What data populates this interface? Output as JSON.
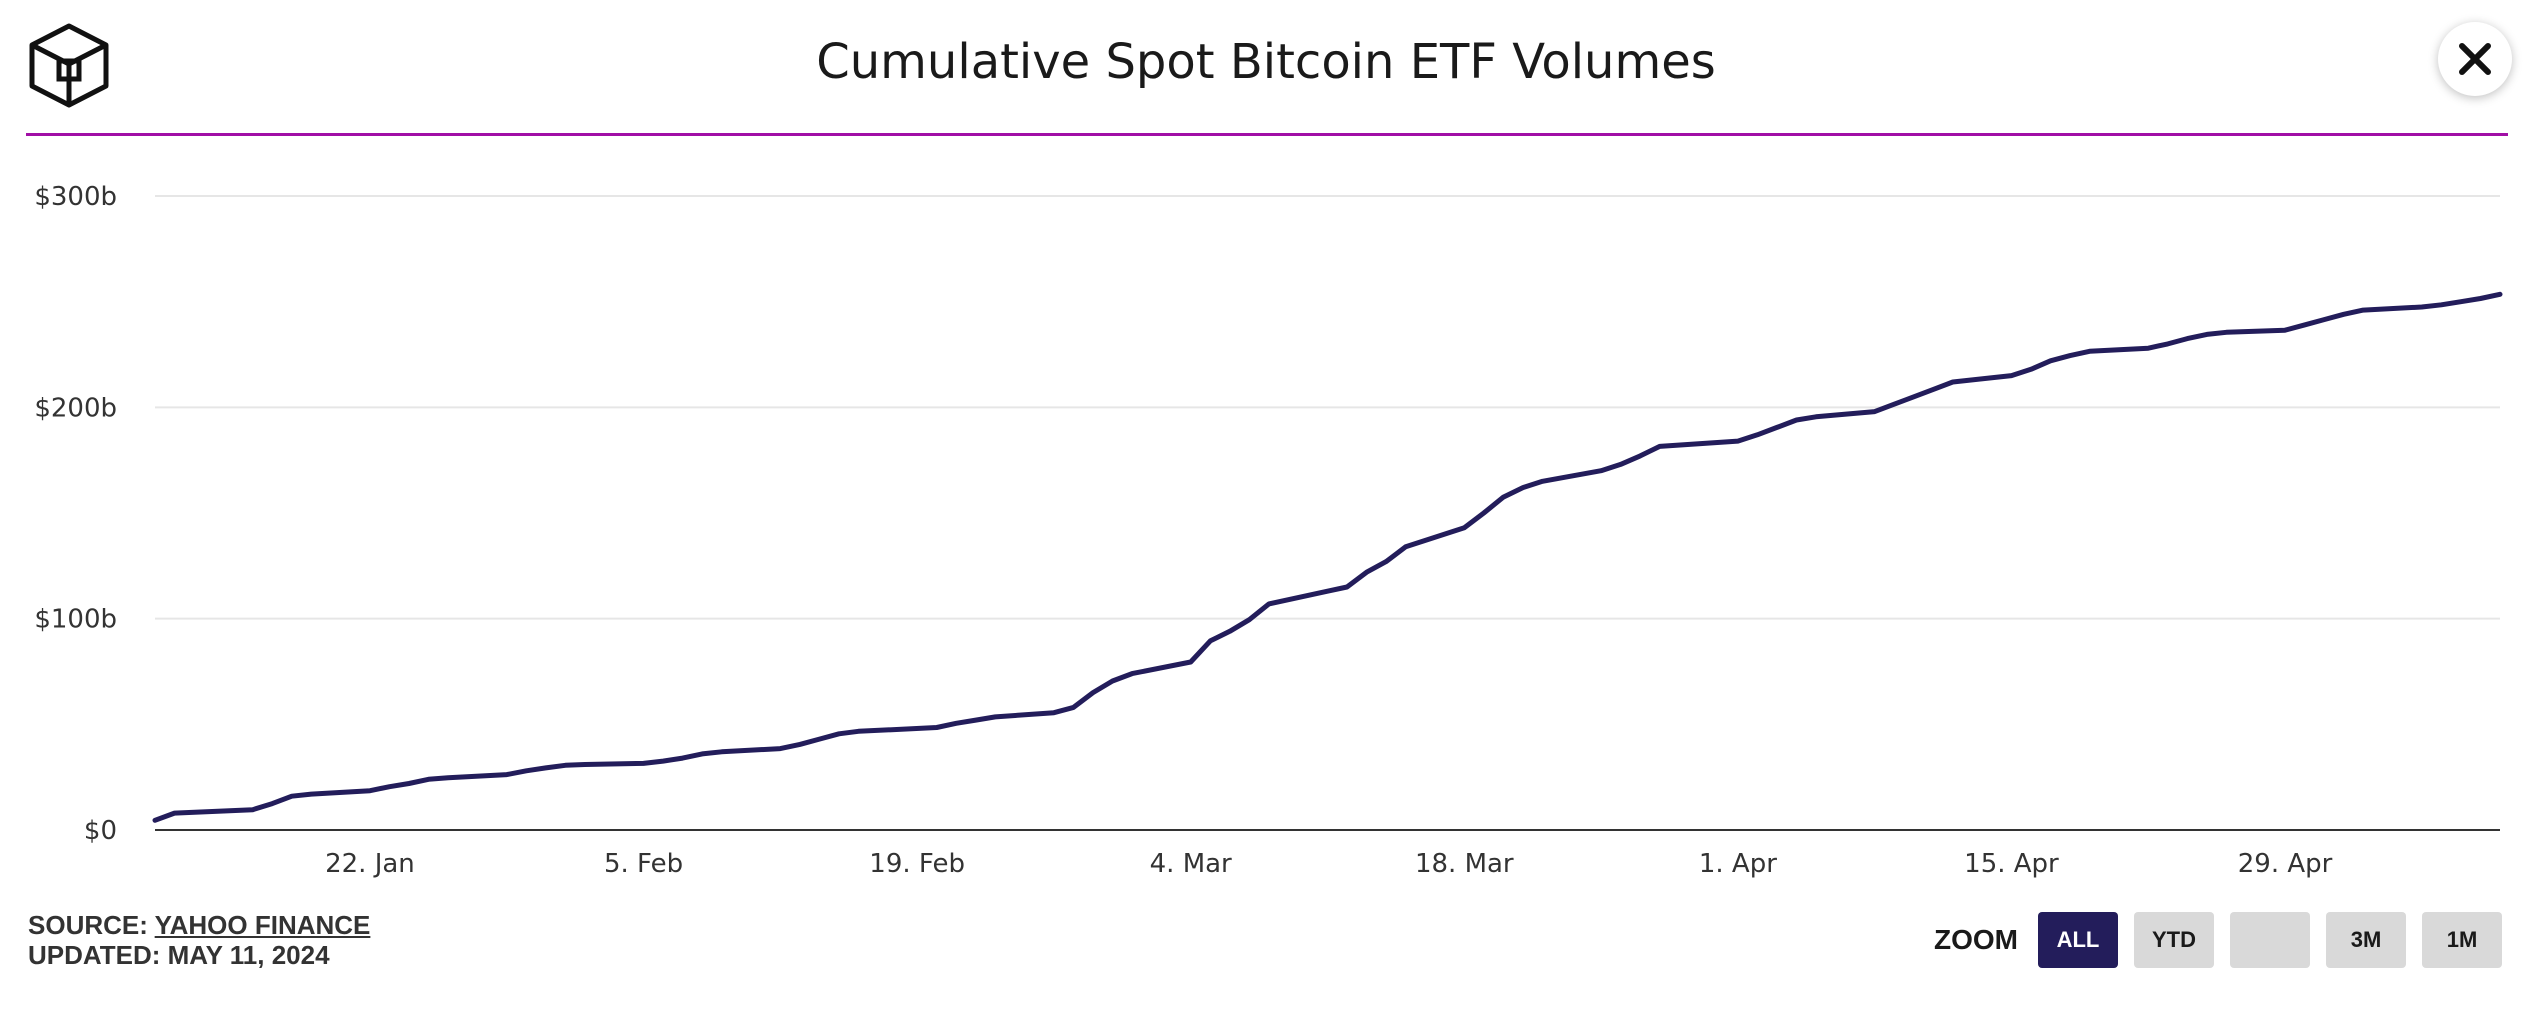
{
  "header": {
    "title": "Cumulative Spot Bitcoin ETF Volumes",
    "close_icon": "close-icon",
    "logo_icon": "cube-logo-icon"
  },
  "colors": {
    "line": "#231d5b",
    "accent": "#a10fa6",
    "grid": "#e6e6e6",
    "zoom_active": "#231d5b",
    "zoom_inactive": "#d9d9d9"
  },
  "footer": {
    "source_prefix": "SOURCE: ",
    "source_link": "YAHOO FINANCE",
    "updated": "UPDATED: MAY 11, 2024"
  },
  "zoom": {
    "label": "ZOOM",
    "buttons": [
      {
        "label": "ALL",
        "active": true
      },
      {
        "label": "YTD",
        "active": false
      },
      {
        "label": "",
        "active": false
      },
      {
        "label": "3M",
        "active": false
      },
      {
        "label": "1M",
        "active": false
      }
    ]
  },
  "chart_data": {
    "type": "line",
    "title": "Cumulative Spot Bitcoin ETF Volumes",
    "xlabel": "",
    "ylabel": "",
    "ylim": [
      0,
      300
    ],
    "yticks": [
      0,
      100,
      200,
      300
    ],
    "ytick_labels": [
      "$0",
      "$100b",
      "$200b",
      "$300b"
    ],
    "xlim": [
      "2024-01-11",
      "2024-05-10"
    ],
    "xticks": [
      "2024-01-22",
      "2024-02-05",
      "2024-02-19",
      "2024-03-04",
      "2024-03-18",
      "2024-04-01",
      "2024-04-15",
      "2024-04-29"
    ],
    "xtick_labels": [
      "22. Jan",
      "5. Feb",
      "19. Feb",
      "4. Mar",
      "18. Mar",
      "1. Apr",
      "15. Apr",
      "29. Apr"
    ],
    "grid": true,
    "legend": "none",
    "series": [
      {
        "x": [
          "2024-01-11",
          "2024-01-12",
          "2024-01-16",
          "2024-01-17",
          "2024-01-18",
          "2024-01-19",
          "2024-01-22",
          "2024-01-23",
          "2024-01-24",
          "2024-01-25",
          "2024-01-26",
          "2024-01-29",
          "2024-01-30",
          "2024-01-31",
          "2024-02-01",
          "2024-02-02",
          "2024-02-05",
          "2024-02-06",
          "2024-02-07",
          "2024-02-08",
          "2024-02-09",
          "2024-02-12",
          "2024-02-13",
          "2024-02-14",
          "2024-02-15",
          "2024-02-16",
          "2024-02-20",
          "2024-02-21",
          "2024-02-22",
          "2024-02-23",
          "2024-02-26",
          "2024-02-27",
          "2024-02-28",
          "2024-02-29",
          "2024-03-01",
          "2024-03-04",
          "2024-03-05",
          "2024-03-06",
          "2024-03-07",
          "2024-03-08",
          "2024-03-11",
          "2024-03-12",
          "2024-03-13",
          "2024-03-14",
          "2024-03-15",
          "2024-03-18",
          "2024-03-19",
          "2024-03-20",
          "2024-03-21",
          "2024-03-22",
          "2024-03-25",
          "2024-03-26",
          "2024-03-27",
          "2024-03-28",
          "2024-04-01",
          "2024-04-02",
          "2024-04-03",
          "2024-04-04",
          "2024-04-05",
          "2024-04-08",
          "2024-04-09",
          "2024-04-10",
          "2024-04-11",
          "2024-04-12",
          "2024-04-15",
          "2024-04-16",
          "2024-04-17",
          "2024-04-18",
          "2024-04-19",
          "2024-04-22",
          "2024-04-23",
          "2024-04-24",
          "2024-04-25",
          "2024-04-26",
          "2024-04-29",
          "2024-04-30",
          "2024-05-01",
          "2024-05-02",
          "2024-05-03",
          "2024-05-06",
          "2024-05-07",
          "2024-05-08",
          "2024-05-09",
          "2024-05-10"
        ],
        "values": [
          4.6,
          8.0,
          9.6,
          12.5,
          16.0,
          17.0,
          18.6,
          20.5,
          22.0,
          24.0,
          24.7,
          26.2,
          28.0,
          29.4,
          30.6,
          31.0,
          31.5,
          32.6,
          34.0,
          36.0,
          37.0,
          38.5,
          40.5,
          43.0,
          45.5,
          46.7,
          48.5,
          50.5,
          52.0,
          53.5,
          55.5,
          58.0,
          65.0,
          70.5,
          74.0,
          79.5,
          89.5,
          94.0,
          99.5,
          107.0,
          113.0,
          115.0,
          122.0,
          127.0,
          134.0,
          143.0,
          150.0,
          157.5,
          162.0,
          165.0,
          170.0,
          173.0,
          177.0,
          181.5,
          184.0,
          187.0,
          190.5,
          194.0,
          195.5,
          198.0,
          201.5,
          205.0,
          208.5,
          212.0,
          215.0,
          218.0,
          222.0,
          224.5,
          226.5,
          228.0,
          230.0,
          232.5,
          234.5,
          235.5,
          236.5,
          239.0,
          241.5,
          244.0,
          246.0,
          247.5,
          248.5,
          250.0,
          251.5,
          253.5
        ]
      }
    ]
  }
}
